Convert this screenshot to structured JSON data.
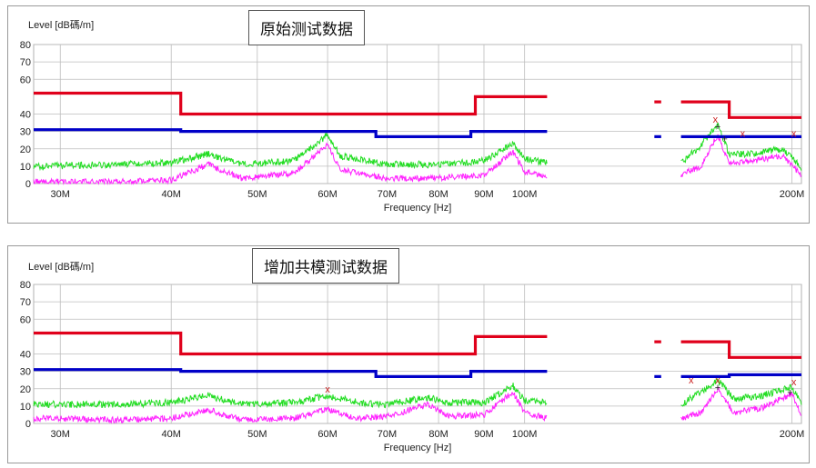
{
  "chart_data": [
    {
      "type": "line",
      "title": "原始测试数据",
      "ylabel": "Level [dB碼/m]",
      "xlabel": "Frequency [Hz]",
      "ylim": [
        0,
        80
      ],
      "xlim": [
        28,
        205
      ],
      "x_scale": "log",
      "yticks": [
        0,
        10,
        20,
        30,
        40,
        60,
        70,
        80
      ],
      "xticks": [
        "30M",
        "40M",
        "50M",
        "60M",
        "70M",
        "80M",
        "90M",
        "100M",
        "200M"
      ],
      "xtick_values": [
        30,
        40,
        50,
        60,
        70,
        80,
        90,
        100,
        200
      ],
      "grid": true,
      "limit_lines": [
        {
          "color": "#e0001b",
          "points": [
            [
              28,
              52
            ],
            [
              41,
              52
            ],
            [
              41,
              40
            ],
            [
              88,
              40
            ],
            [
              88,
              50
            ],
            [
              106,
              50
            ]
          ]
        },
        {
          "color": "#e0001b",
          "points": [
            [
              150,
              47
            ],
            [
              170,
              47
            ],
            [
              170,
              38
            ],
            [
              205,
              38
            ]
          ]
        },
        {
          "color": "#0000c8",
          "points": [
            [
              28,
              31
            ],
            [
              41,
              31
            ],
            [
              41,
              30
            ],
            [
              68,
              30
            ],
            [
              68,
              27
            ],
            [
              87,
              27
            ],
            [
              87,
              30
            ],
            [
              106,
              30
            ]
          ]
        },
        {
          "color": "#0000c8",
          "points": [
            [
              150,
              27
            ],
            [
              205,
              27
            ]
          ]
        }
      ],
      "series": [
        {
          "color": "#22dd22",
          "points": [
            [
              28,
              10
            ],
            [
              35,
              11
            ],
            [
              40,
              12
            ],
            [
              44,
              17
            ],
            [
              48,
              11
            ],
            [
              55,
              13
            ],
            [
              60,
              28
            ],
            [
              62,
              16
            ],
            [
              70,
              11
            ],
            [
              80,
              11
            ],
            [
              90,
              13
            ],
            [
              97,
              23
            ],
            [
              100,
              14
            ],
            [
              106,
              12
            ],
            [
              150,
              12
            ],
            [
              158,
              22
            ],
            [
              165,
              34
            ],
            [
              170,
              17
            ],
            [
              180,
              17
            ],
            [
              195,
              20
            ],
            [
              205,
              9
            ]
          ]
        },
        {
          "color": "#ff22ff",
          "points": [
            [
              28,
              1
            ],
            [
              35,
              1
            ],
            [
              40,
              2
            ],
            [
              44,
              11
            ],
            [
              48,
              3
            ],
            [
              55,
              6
            ],
            [
              60,
              22
            ],
            [
              62,
              8
            ],
            [
              70,
              3
            ],
            [
              80,
              3
            ],
            [
              90,
              5
            ],
            [
              97,
              18
            ],
            [
              100,
              7
            ],
            [
              106,
              4
            ],
            [
              150,
              5
            ],
            [
              158,
              10
            ],
            [
              165,
              28
            ],
            [
              170,
              12
            ],
            [
              180,
              13
            ],
            [
              195,
              16
            ],
            [
              205,
              5
            ]
          ]
        }
      ],
      "markers": [
        {
          "symbol": "x",
          "color": "#cc2222",
          "x": 164,
          "y": 37
        },
        {
          "symbol": "x",
          "color": "#cc2222",
          "x": 176,
          "y": 29
        },
        {
          "symbol": "x",
          "color": "#cc2222",
          "x": 201,
          "y": 29
        },
        {
          "symbol": "+",
          "color": "#222222",
          "x": 165,
          "y": 33
        },
        {
          "symbol": "+",
          "color": "#222222",
          "x": 168,
          "y": 26
        }
      ]
    },
    {
      "type": "line",
      "title": "增加共模测试数据",
      "ylabel": "Level [dB碼/m]",
      "xlabel": "Frequency [Hz]",
      "ylim": [
        0,
        80
      ],
      "xlim": [
        28,
        205
      ],
      "x_scale": "log",
      "yticks": [
        0,
        10,
        20,
        30,
        40,
        60,
        70,
        80
      ],
      "xticks": [
        "30M",
        "40M",
        "50M",
        "60M",
        "70M",
        "80M",
        "90M",
        "100M",
        "200M"
      ],
      "xtick_values": [
        30,
        40,
        50,
        60,
        70,
        80,
        90,
        100,
        200
      ],
      "grid": true,
      "limit_lines": [
        {
          "color": "#e0001b",
          "points": [
            [
              28,
              52
            ],
            [
              41,
              52
            ],
            [
              41,
              40
            ],
            [
              88,
              40
            ],
            [
              88,
              50
            ],
            [
              106,
              50
            ]
          ]
        },
        {
          "color": "#e0001b",
          "points": [
            [
              150,
              47
            ],
            [
              170,
              47
            ],
            [
              170,
              38
            ],
            [
              205,
              38
            ]
          ]
        },
        {
          "color": "#0000c8",
          "points": [
            [
              28,
              31
            ],
            [
              41,
              31
            ],
            [
              41,
              30
            ],
            [
              68,
              30
            ],
            [
              68,
              27
            ],
            [
              87,
              27
            ],
            [
              87,
              30
            ],
            [
              106,
              30
            ]
          ]
        },
        {
          "color": "#0000c8",
          "points": [
            [
              150,
              27
            ],
            [
              170,
              27
            ],
            [
              170,
              28
            ],
            [
              205,
              28
            ]
          ]
        }
      ],
      "series": [
        {
          "color": "#22dd22",
          "points": [
            [
              28,
              11
            ],
            [
              35,
              11
            ],
            [
              40,
              12
            ],
            [
              44,
              16
            ],
            [
              48,
              11
            ],
            [
              55,
              12
            ],
            [
              60,
              16
            ],
            [
              65,
              12
            ],
            [
              70,
              11
            ],
            [
              78,
              15
            ],
            [
              82,
              12
            ],
            [
              90,
              12
            ],
            [
              97,
              22
            ],
            [
              100,
              13
            ],
            [
              106,
              12
            ],
            [
              150,
              11
            ],
            [
              158,
              18
            ],
            [
              165,
              25
            ],
            [
              172,
              14
            ],
            [
              185,
              16
            ],
            [
              200,
              21
            ],
            [
              205,
              12
            ]
          ]
        },
        {
          "color": "#ff22ff",
          "points": [
            [
              28,
              3
            ],
            [
              35,
              2
            ],
            [
              40,
              3
            ],
            [
              44,
              8
            ],
            [
              48,
              2
            ],
            [
              55,
              3
            ],
            [
              60,
              8
            ],
            [
              65,
              3
            ],
            [
              70,
              4
            ],
            [
              78,
              11
            ],
            [
              82,
              4
            ],
            [
              90,
              5
            ],
            [
              97,
              18
            ],
            [
              100,
              6
            ],
            [
              106,
              3
            ],
            [
              150,
              3
            ],
            [
              158,
              6
            ],
            [
              165,
              20
            ],
            [
              172,
              6
            ],
            [
              185,
              9
            ],
            [
              200,
              17
            ],
            [
              205,
              5
            ]
          ]
        }
      ],
      "markers": [
        {
          "symbol": "x",
          "color": "#cc2222",
          "x": 60,
          "y": 20
        },
        {
          "symbol": "x",
          "color": "#cc2222",
          "x": 154,
          "y": 25
        },
        {
          "symbol": "x",
          "color": "#cc2222",
          "x": 165,
          "y": 25
        },
        {
          "symbol": "x",
          "color": "#cc2222",
          "x": 201,
          "y": 24
        },
        {
          "symbol": "+",
          "color": "#222222",
          "x": 165,
          "y": 21
        },
        {
          "symbol": "+",
          "color": "#222222",
          "x": 199,
          "y": 18
        }
      ]
    }
  ]
}
